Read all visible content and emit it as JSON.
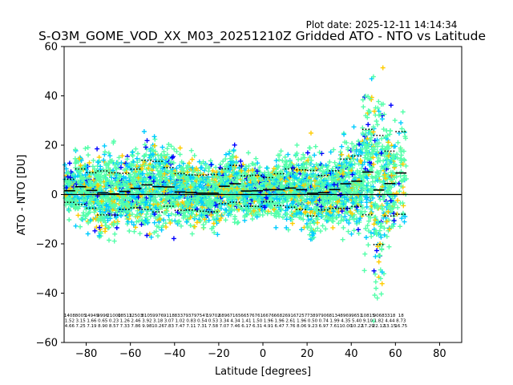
{
  "chart_data": {
    "type": "scatter",
    "title": "S-O3M_GOME_VOD_XX_M03_20251210Z Gridded ATO - NTO vs Latitude",
    "plot_date": "Plot date: 2025-12-11 14:14:34",
    "xlabel": "Latitude [degrees]",
    "ylabel": "ATO - NTO [DU]",
    "xlim": [
      -90,
      90
    ],
    "ylim": [
      -60,
      60
    ],
    "xticks": [
      -80,
      -60,
      -40,
      -20,
      0,
      20,
      40,
      60,
      80
    ],
    "yticks": [
      -60,
      -40,
      -20,
      0,
      20,
      40,
      60
    ],
    "zero_line": 0,
    "scatter_colors": [
      "#55ffaa",
      "#00ccff",
      "#ffcc00",
      "#0000ff"
    ],
    "scatter_marker": "+",
    "bins": [
      {
        "lat": -87.5,
        "n": "1408",
        "mean": "1.52",
        "sd": "4.66"
      },
      {
        "lat": -82.5,
        "n": "8005",
        "mean": "3.15",
        "sd": "7.25"
      },
      {
        "lat": -77.5,
        "n": "14949",
        "mean": "1.66",
        "sd": "7.19"
      },
      {
        "lat": -72.5,
        "n": "9996",
        "mean": "0.65",
        "sd": "8.90"
      },
      {
        "lat": -67.5,
        "n": "21000",
        "mean": "0.23",
        "sd": "8.57"
      },
      {
        "lat": -62.5,
        "n": "18513",
        "mean": "1.26",
        "sd": "7.33"
      },
      {
        "lat": -57.5,
        "n": "12503",
        "mean": "2.46",
        "sd": "7.86"
      },
      {
        "lat": -52.5,
        "n": "8105",
        "mean": "3.92",
        "sd": "9.98"
      },
      {
        "lat": -47.5,
        "n": "9976",
        "mean": "3.18",
        "sd": "10.26"
      },
      {
        "lat": -42.5,
        "n": "9118",
        "mean": "3.07",
        "sd": "7.83"
      },
      {
        "lat": -37.5,
        "n": "8337",
        "mean": "1.02",
        "sd": "7.47"
      },
      {
        "lat": -32.5,
        "n": "9379",
        "mean": "0.83",
        "sd": "7.11"
      },
      {
        "lat": -27.5,
        "n": "7547",
        "mean": "0.54",
        "sd": "7.31"
      },
      {
        "lat": -22.5,
        "n": "19702",
        "mean": "0.53",
        "sd": "7.58"
      },
      {
        "lat": -17.5,
        "n": "6896",
        "mean": "3.34",
        "sd": "7.07"
      },
      {
        "lat": -12.5,
        "n": "7165",
        "mean": "4.34",
        "sd": "7.46"
      },
      {
        "lat": -7.5,
        "n": "6657",
        "mean": "1.41",
        "sd": "6.17"
      },
      {
        "lat": -2.5,
        "n": "6761",
        "mean": "1.50",
        "sd": "6.31"
      },
      {
        "lat": 2.5,
        "n": "6676",
        "mean": "1.96",
        "sd": "4.91"
      },
      {
        "lat": 7.5,
        "n": "6682",
        "mean": "1.96",
        "sd": "6.47"
      },
      {
        "lat": 12.5,
        "n": "6916",
        "mean": "2.61",
        "sd": "7.76"
      },
      {
        "lat": 17.5,
        "n": "7257",
        "mean": "1.96",
        "sd": "8.06"
      },
      {
        "lat": 22.5,
        "n": "7389",
        "mean": "0.50",
        "sd": "9.23"
      },
      {
        "lat": 27.5,
        "n": "7906",
        "mean": "0.74",
        "sd": "6.97"
      },
      {
        "lat": 32.5,
        "n": "8134",
        "mean": "1.99",
        "sd": "7.61"
      },
      {
        "lat": 37.5,
        "n": "8969",
        "mean": "4.35",
        "sd": "10.00"
      },
      {
        "lat": 42.5,
        "n": "9651",
        "mean": "5.40",
        "sd": "10.22"
      },
      {
        "lat": 47.5,
        "n": "10815",
        "mean": "9.10",
        "sd": "17.29"
      },
      {
        "lat": 52.5,
        "n": "9068",
        "mean": "1.82",
        "sd": "22.12"
      },
      {
        "lat": 57.5,
        "n": "3318",
        "mean": "4.44",
        "sd": "13.15"
      },
      {
        "lat": 62.5,
        "n": "18",
        "mean": "8.73",
        "sd": "16.75"
      }
    ]
  }
}
